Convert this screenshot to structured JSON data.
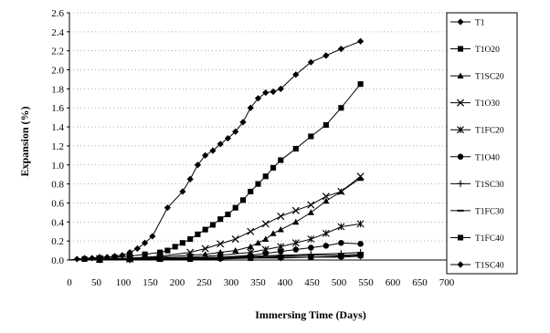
{
  "chart_data": {
    "type": "line",
    "title": "",
    "xlabel": "Immersing Time (Days)",
    "ylabel": "Expansion (%)",
    "xlim": [
      0,
      700
    ],
    "ylim": [
      0,
      2.6
    ],
    "x_ticks": [
      "0",
      "50",
      "100",
      "150",
      "200",
      "250",
      "300",
      "350",
      "400",
      "450",
      "500",
      "550",
      "600",
      "650",
      "700"
    ],
    "y_ticks": [
      "0.0",
      "0.2",
      "0.4",
      "0.6",
      "0.8",
      "1.0",
      "1.2",
      "1.4",
      "1.6",
      "1.8",
      "2.0",
      "2.2",
      "2.4",
      "2.6"
    ],
    "grid": "horizontal dotted",
    "legend_position": "right",
    "series": [
      {
        "name": "T1",
        "marker": "diamond",
        "x": [
          0,
          14,
          28,
          42,
          56,
          70,
          84,
          98,
          112,
          126,
          140,
          154,
          182,
          210,
          224,
          238,
          252,
          266,
          280,
          294,
          308,
          322,
          336,
          350,
          364,
          378,
          392,
          420,
          448,
          476,
          504,
          540
        ],
        "y": [
          0,
          0.01,
          0.02,
          0.02,
          0.03,
          0.03,
          0.04,
          0.05,
          0.08,
          0.12,
          0.18,
          0.25,
          0.55,
          0.72,
          0.85,
          1.0,
          1.1,
          1.15,
          1.22,
          1.28,
          1.35,
          1.45,
          1.6,
          1.7,
          1.76,
          1.77,
          1.8,
          1.95,
          2.08,
          2.15,
          2.22,
          2.3
        ]
      },
      {
        "name": "T1O20",
        "marker": "square",
        "x": [
          0,
          28,
          56,
          84,
          112,
          140,
          168,
          182,
          196,
          210,
          224,
          238,
          252,
          266,
          280,
          294,
          308,
          322,
          336,
          350,
          364,
          378,
          392,
          420,
          448,
          476,
          504,
          540
        ],
        "y": [
          0,
          0.01,
          0.02,
          0.03,
          0.04,
          0.06,
          0.08,
          0.1,
          0.14,
          0.18,
          0.22,
          0.27,
          0.32,
          0.37,
          0.43,
          0.48,
          0.55,
          0.63,
          0.72,
          0.8,
          0.88,
          0.97,
          1.05,
          1.17,
          1.3,
          1.42,
          1.6,
          1.85
        ]
      },
      {
        "name": "T1SC20",
        "marker": "triangle",
        "x": [
          0,
          56,
          112,
          168,
          224,
          252,
          280,
          308,
          336,
          350,
          364,
          378,
          392,
          420,
          448,
          476,
          504,
          540
        ],
        "y": [
          0,
          0.01,
          0.02,
          0.03,
          0.05,
          0.06,
          0.08,
          0.1,
          0.14,
          0.18,
          0.22,
          0.28,
          0.32,
          0.4,
          0.5,
          0.62,
          0.72,
          0.86
        ]
      },
      {
        "name": "T1O30",
        "marker": "x",
        "x": [
          0,
          56,
          112,
          168,
          224,
          252,
          280,
          308,
          336,
          364,
          392,
          420,
          448,
          476,
          504,
          540
        ],
        "y": [
          0,
          0.01,
          0.02,
          0.04,
          0.08,
          0.12,
          0.17,
          0.22,
          0.3,
          0.38,
          0.46,
          0.52,
          0.58,
          0.67,
          0.72,
          0.88
        ]
      },
      {
        "name": "T1FC20",
        "marker": "asterisk",
        "x": [
          0,
          56,
          112,
          168,
          224,
          280,
          336,
          364,
          392,
          420,
          448,
          476,
          504,
          540
        ],
        "y": [
          0,
          0.01,
          0.01,
          0.02,
          0.03,
          0.05,
          0.08,
          0.11,
          0.14,
          0.18,
          0.22,
          0.28,
          0.35,
          0.38
        ]
      },
      {
        "name": "T1O40",
        "marker": "circle",
        "x": [
          0,
          56,
          112,
          168,
          224,
          280,
          336,
          364,
          392,
          420,
          448,
          476,
          504,
          540
        ],
        "y": [
          0,
          0.01,
          0.01,
          0.02,
          0.02,
          0.03,
          0.05,
          0.07,
          0.09,
          0.11,
          0.13,
          0.15,
          0.18,
          0.17
        ]
      },
      {
        "name": "T1SC30",
        "marker": "plus",
        "x": [
          0,
          56,
          112,
          168,
          224,
          280,
          336,
          392,
          448,
          504,
          540
        ],
        "y": [
          0,
          0.01,
          0.01,
          0.02,
          0.02,
          0.03,
          0.04,
          0.05,
          0.06,
          0.07,
          0.08
        ]
      },
      {
        "name": "T1FC30",
        "marker": "dash",
        "x": [
          0,
          56,
          112,
          168,
          224,
          280,
          336,
          392,
          448,
          504,
          540
        ],
        "y": [
          0,
          0.01,
          0.01,
          0.01,
          0.02,
          0.02,
          0.03,
          0.04,
          0.05,
          0.05,
          0.06
        ]
      },
      {
        "name": "T1FC40",
        "marker": "square",
        "x": [
          0,
          56,
          112,
          168,
          224,
          280,
          336,
          392,
          448,
          504,
          540
        ],
        "y": [
          0,
          0.0,
          0.01,
          0.01,
          0.01,
          0.02,
          0.02,
          0.03,
          0.03,
          0.04,
          0.05
        ]
      },
      {
        "name": "T1SC40",
        "marker": "diamond",
        "x": [
          0,
          56,
          112,
          168,
          224,
          280,
          336,
          392,
          448,
          504,
          540
        ],
        "y": [
          0,
          0.0,
          0.0,
          0.01,
          0.01,
          0.01,
          0.02,
          0.02,
          0.03,
          0.03,
          0.04
        ]
      }
    ]
  }
}
